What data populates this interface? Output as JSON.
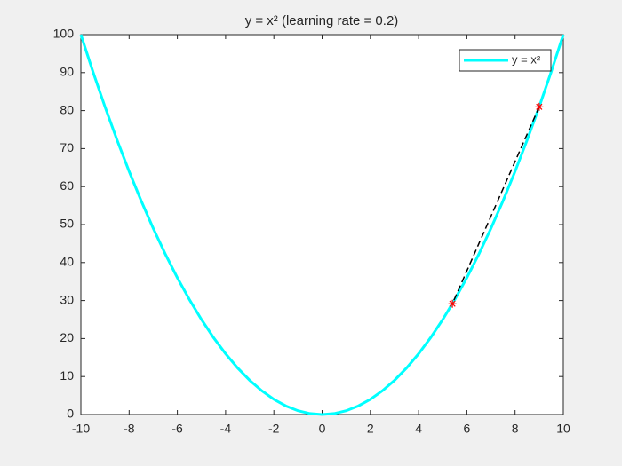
{
  "chart_data": {
    "type": "line",
    "title": "y = x² (learning rate = 0.2)",
    "x": [
      -10,
      -9.5,
      -9,
      -8.5,
      -8,
      -7.5,
      -7,
      -6.5,
      -6,
      -5.5,
      -5,
      -4.5,
      -4,
      -3.5,
      -3,
      -2.5,
      -2,
      -1.5,
      -1,
      -0.5,
      0,
      0.5,
      1,
      1.5,
      2,
      2.5,
      3,
      3.5,
      4,
      4.5,
      5,
      5.5,
      6,
      6.5,
      7,
      7.5,
      8,
      8.5,
      9,
      9.5,
      10
    ],
    "series": [
      {
        "name": "y = x²",
        "color": "#00ffff",
        "values": [
          100,
          90.25,
          81,
          72.25,
          64,
          56.25,
          49,
          42.25,
          36,
          30.25,
          25,
          20.25,
          16,
          12.25,
          9,
          6.25,
          4,
          2.25,
          1,
          0.25,
          0,
          0.25,
          1,
          2.25,
          4,
          6.25,
          9,
          12.25,
          16,
          20.25,
          25,
          30.25,
          36,
          42.25,
          49,
          56.25,
          64,
          72.25,
          81,
          90.25,
          100
        ]
      }
    ],
    "path": {
      "x": [
        9,
        5.4
      ],
      "values": [
        81,
        29.16
      ],
      "color": "#000000",
      "marker_color": "#ff0000"
    },
    "xlim": [
      -10,
      10
    ],
    "xticks": [
      -10,
      -8,
      -6,
      -4,
      -2,
      0,
      2,
      4,
      6,
      8,
      10
    ],
    "ylim": [
      0,
      100
    ],
    "yticks": [
      0,
      10,
      20,
      30,
      40,
      50,
      60,
      70,
      80,
      90,
      100
    ],
    "legend": "top-right"
  }
}
